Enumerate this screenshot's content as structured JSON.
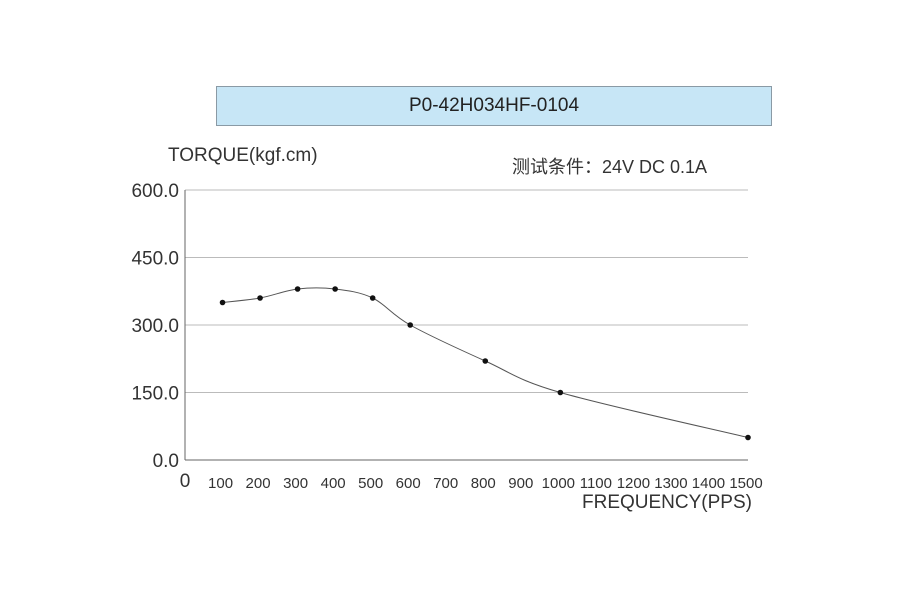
{
  "chart_data": {
    "type": "line",
    "title": "P0-42H034HF-0104",
    "ylabel": "TORQUE(kgf.cm)",
    "xlabel": "FREQUENCY(PPS)",
    "annotation": "测试条件：24V DC   0.1A",
    "xlim": [
      0,
      1500
    ],
    "ylim": [
      0,
      600
    ],
    "y_ticks": [
      "0.0",
      "150.0",
      "300.0",
      "450.0",
      "600.0"
    ],
    "y_tick_values": [
      0,
      150,
      300,
      450,
      600
    ],
    "x_ticks": [
      "0",
      "100",
      "200",
      "300",
      "400",
      "500",
      "600",
      "700",
      "800",
      "900",
      "1000",
      "1100",
      "1200",
      "1300",
      "1400",
      "1500"
    ],
    "x_tick_values": [
      0,
      100,
      200,
      300,
      400,
      500,
      600,
      700,
      800,
      900,
      1000,
      1100,
      1200,
      1300,
      1400,
      1500
    ],
    "grid": "horizontal",
    "series": [
      {
        "x": [
          100,
          200,
          300,
          400,
          500,
          600,
          800,
          1000,
          1500
        ],
        "y": [
          350,
          360,
          380,
          380,
          360,
          300,
          220,
          150,
          50
        ]
      }
    ],
    "colors": {
      "line": "#555555",
      "grid": "#bbbbbb",
      "marker": "#111111"
    }
  }
}
